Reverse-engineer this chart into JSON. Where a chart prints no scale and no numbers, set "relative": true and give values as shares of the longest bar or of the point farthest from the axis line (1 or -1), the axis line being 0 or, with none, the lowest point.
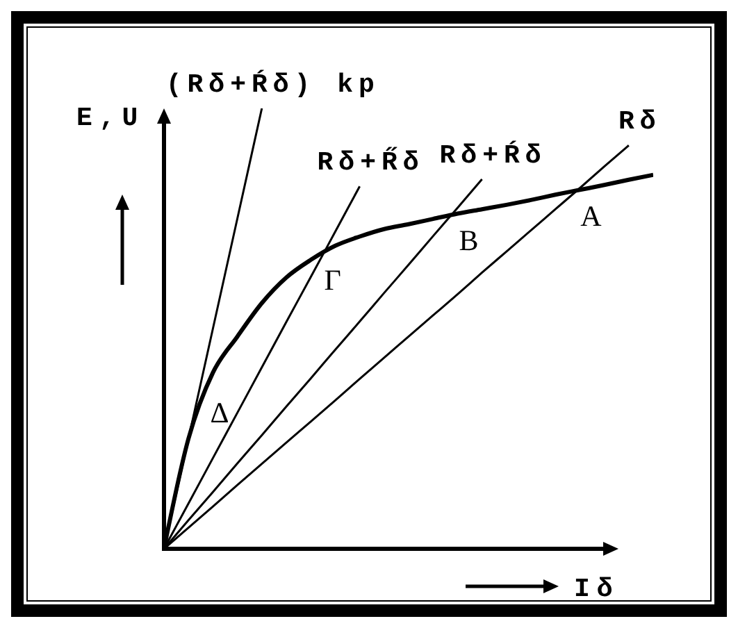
{
  "chart_data": {
    "type": "line",
    "relative": true,
    "xlabel": "Iδ",
    "ylabel": "E,U",
    "categories": [
      null,
      null,
      null,
      null,
      null,
      null,
      null,
      null,
      null,
      null,
      null,
      null,
      null,
      null,
      null,
      null,
      null,
      null,
      null,
      null,
      null
    ],
    "series": [
      {
        "color": "#000000",
        "values": [
          0,
          0.25,
          0.4,
          0.482,
          0.558,
          0.616,
          0.656,
          0.688,
          0.709,
          0.726,
          0.737,
          0.749,
          0.761,
          0.771,
          0.781,
          0.792,
          0.804,
          0.815,
          0.826,
          0.838,
          0.849
        ]
      },
      {
        "name": "(Rδ+Ŕδ) kp",
        "color": "#000000",
        "values": [
          0,
          0.25,
          0.5,
          0.75,
          1,
          null,
          null,
          null,
          null,
          null,
          null,
          null,
          null,
          null,
          null,
          null,
          null,
          null,
          null,
          null,
          null
        ]
      },
      {
        "name": "Rδ+R̋δ",
        "color": "#000000",
        "values": [
          0,
          0.103,
          0.206,
          0.309,
          0.412,
          0.515,
          0.617,
          0.72,
          0.823,
          null,
          null,
          null,
          null,
          null,
          null,
          null,
          null,
          null,
          null,
          null,
          null
        ]
      },
      {
        "name": "Rδ+Ŕδ",
        "color": "#000000",
        "values": [
          0,
          0.065,
          0.129,
          0.194,
          0.258,
          0.323,
          0.387,
          0.452,
          0.516,
          0.581,
          0.645,
          0.71,
          0.774,
          0.839,
          null,
          null,
          null,
          null,
          null,
          null,
          null
        ]
      },
      {
        "name": "Rδ",
        "color": "#000000",
        "values": [
          0,
          0.048,
          0.096,
          0.145,
          0.193,
          0.241,
          0.289,
          0.337,
          0.386,
          0.434,
          0.482,
          0.53,
          0.578,
          0.627,
          0.675,
          0.723,
          0.771,
          0.819,
          0.868,
          0.916,
          null
        ]
      }
    ],
    "annotations": [
      {
        "text": "A",
        "y": 0.815
      },
      {
        "text": "B",
        "y": 0.761
      },
      {
        "text": "Γ",
        "y": 0.67
      },
      "Δ"
    ]
  }
}
